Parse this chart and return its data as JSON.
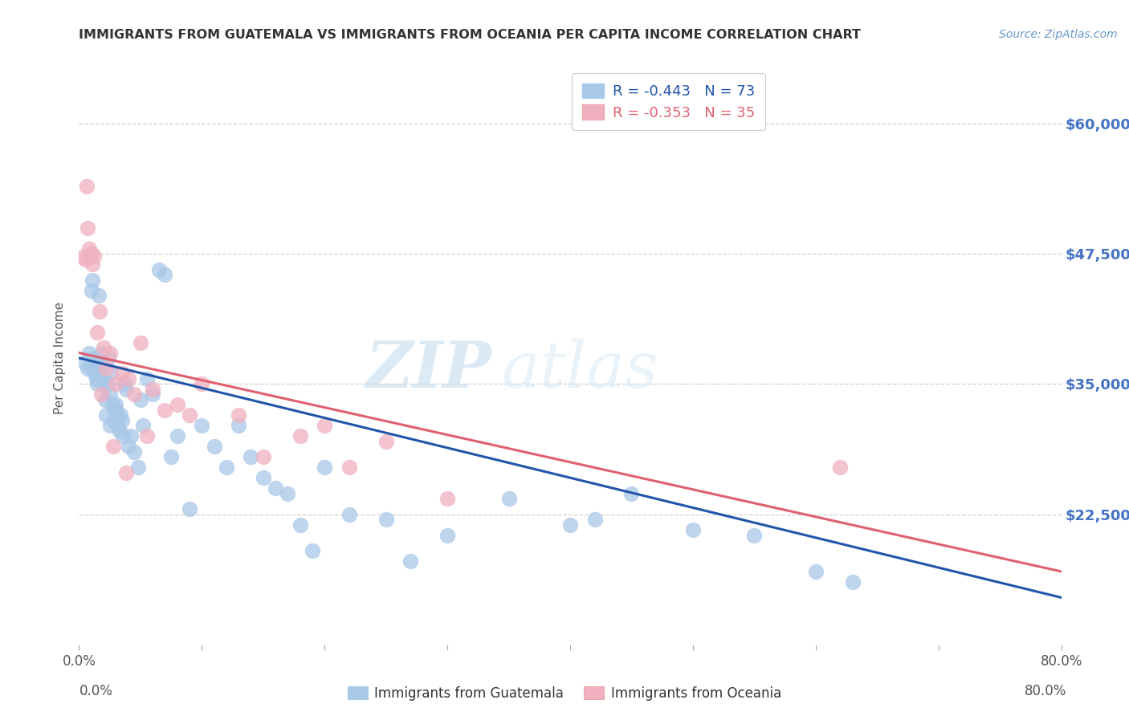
{
  "title": "IMMIGRANTS FROM GUATEMALA VS IMMIGRANTS FROM OCEANIA PER CAPITA INCOME CORRELATION CHART",
  "source": "Source: ZipAtlas.com",
  "ylabel": "Per Capita Income",
  "yticks": [
    22500,
    35000,
    47500,
    60000
  ],
  "ytick_labels": [
    "$22,500",
    "$35,000",
    "$47,500",
    "$60,000"
  ],
  "ytick_color": "#4472c4",
  "xlim": [
    0.0,
    80.0
  ],
  "ylim": [
    10000,
    65000
  ],
  "blue_color": "#a8c8e8",
  "pink_color": "#f0b0c0",
  "blue_line_color": "#2255aa",
  "pink_line_color": "#e06070",
  "legend_r_blue": "R = -0.443",
  "legend_n_blue": "N = 73",
  "legend_r_pink": "R = -0.353",
  "legend_n_pink": "N = 35",
  "watermark_zip": "ZIP",
  "watermark_atlas": "atlas",
  "blue_scatter_x": [
    0.5,
    0.7,
    0.8,
    1.0,
    1.1,
    1.2,
    1.3,
    1.4,
    1.5,
    1.6,
    1.7,
    1.8,
    1.9,
    2.0,
    2.1,
    2.2,
    2.3,
    2.4,
    2.5,
    2.6,
    2.7,
    2.8,
    2.9,
    3.0,
    3.1,
    3.2,
    3.3,
    3.4,
    3.5,
    3.6,
    3.7,
    3.8,
    4.0,
    4.2,
    4.5,
    4.8,
    5.0,
    5.2,
    5.5,
    6.0,
    6.5,
    7.0,
    7.5,
    8.0,
    9.0,
    10.0,
    11.0,
    12.0,
    13.0,
    14.0,
    15.0,
    16.0,
    17.0,
    18.0,
    19.0,
    20.0,
    22.0,
    25.0,
    27.0,
    30.0,
    35.0,
    40.0,
    42.0,
    45.0,
    50.0,
    55.0,
    60.0,
    63.0,
    1.0,
    1.5,
    2.0,
    2.5,
    3.0
  ],
  "blue_scatter_y": [
    37000,
    36500,
    38000,
    44000,
    45000,
    37500,
    36000,
    35500,
    35000,
    43500,
    36500,
    37000,
    38000,
    35000,
    33500,
    32000,
    35000,
    37500,
    34000,
    36000,
    33000,
    31500,
    32500,
    33000,
    32000,
    31000,
    30500,
    32000,
    31500,
    30000,
    35000,
    34500,
    29000,
    30000,
    28500,
    27000,
    33500,
    31000,
    35500,
    34000,
    46000,
    45500,
    28000,
    30000,
    23000,
    31000,
    29000,
    27000,
    31000,
    28000,
    26000,
    25000,
    24500,
    21500,
    19000,
    27000,
    22500,
    22000,
    18000,
    20500,
    24000,
    21500,
    22000,
    24500,
    21000,
    20500,
    17000,
    16000,
    36500,
    37000,
    35500,
    31000,
    32500
  ],
  "pink_scatter_x": [
    0.3,
    0.5,
    0.6,
    0.7,
    0.8,
    1.0,
    1.1,
    1.2,
    1.5,
    1.7,
    2.0,
    2.2,
    2.5,
    3.0,
    3.5,
    4.0,
    4.5,
    5.0,
    6.0,
    7.0,
    8.0,
    9.0,
    10.0,
    13.0,
    15.0,
    18.0,
    20.0,
    22.0,
    25.0,
    30.0,
    62.0,
    1.8,
    2.8,
    3.8,
    5.5
  ],
  "pink_scatter_y": [
    47200,
    47000,
    54000,
    50000,
    48000,
    47500,
    46500,
    47300,
    40000,
    42000,
    38500,
    36500,
    38000,
    35000,
    36000,
    35500,
    34000,
    39000,
    34500,
    32500,
    33000,
    32000,
    35000,
    32000,
    28000,
    30000,
    31000,
    27000,
    29500,
    24000,
    27000,
    34000,
    29000,
    26500,
    30000
  ],
  "blue_reg_x0": 0.0,
  "blue_reg_y0": 37500,
  "blue_reg_x1": 80.0,
  "blue_reg_y1": 14500,
  "pink_reg_x0": 0.0,
  "pink_reg_y0": 38000,
  "pink_reg_x1": 80.0,
  "pink_reg_y1": 17000,
  "xtick_positions": [
    0,
    10,
    20,
    30,
    40,
    50,
    60,
    70,
    80
  ],
  "grid_color": "#d0d0d0",
  "background_color": "#ffffff"
}
